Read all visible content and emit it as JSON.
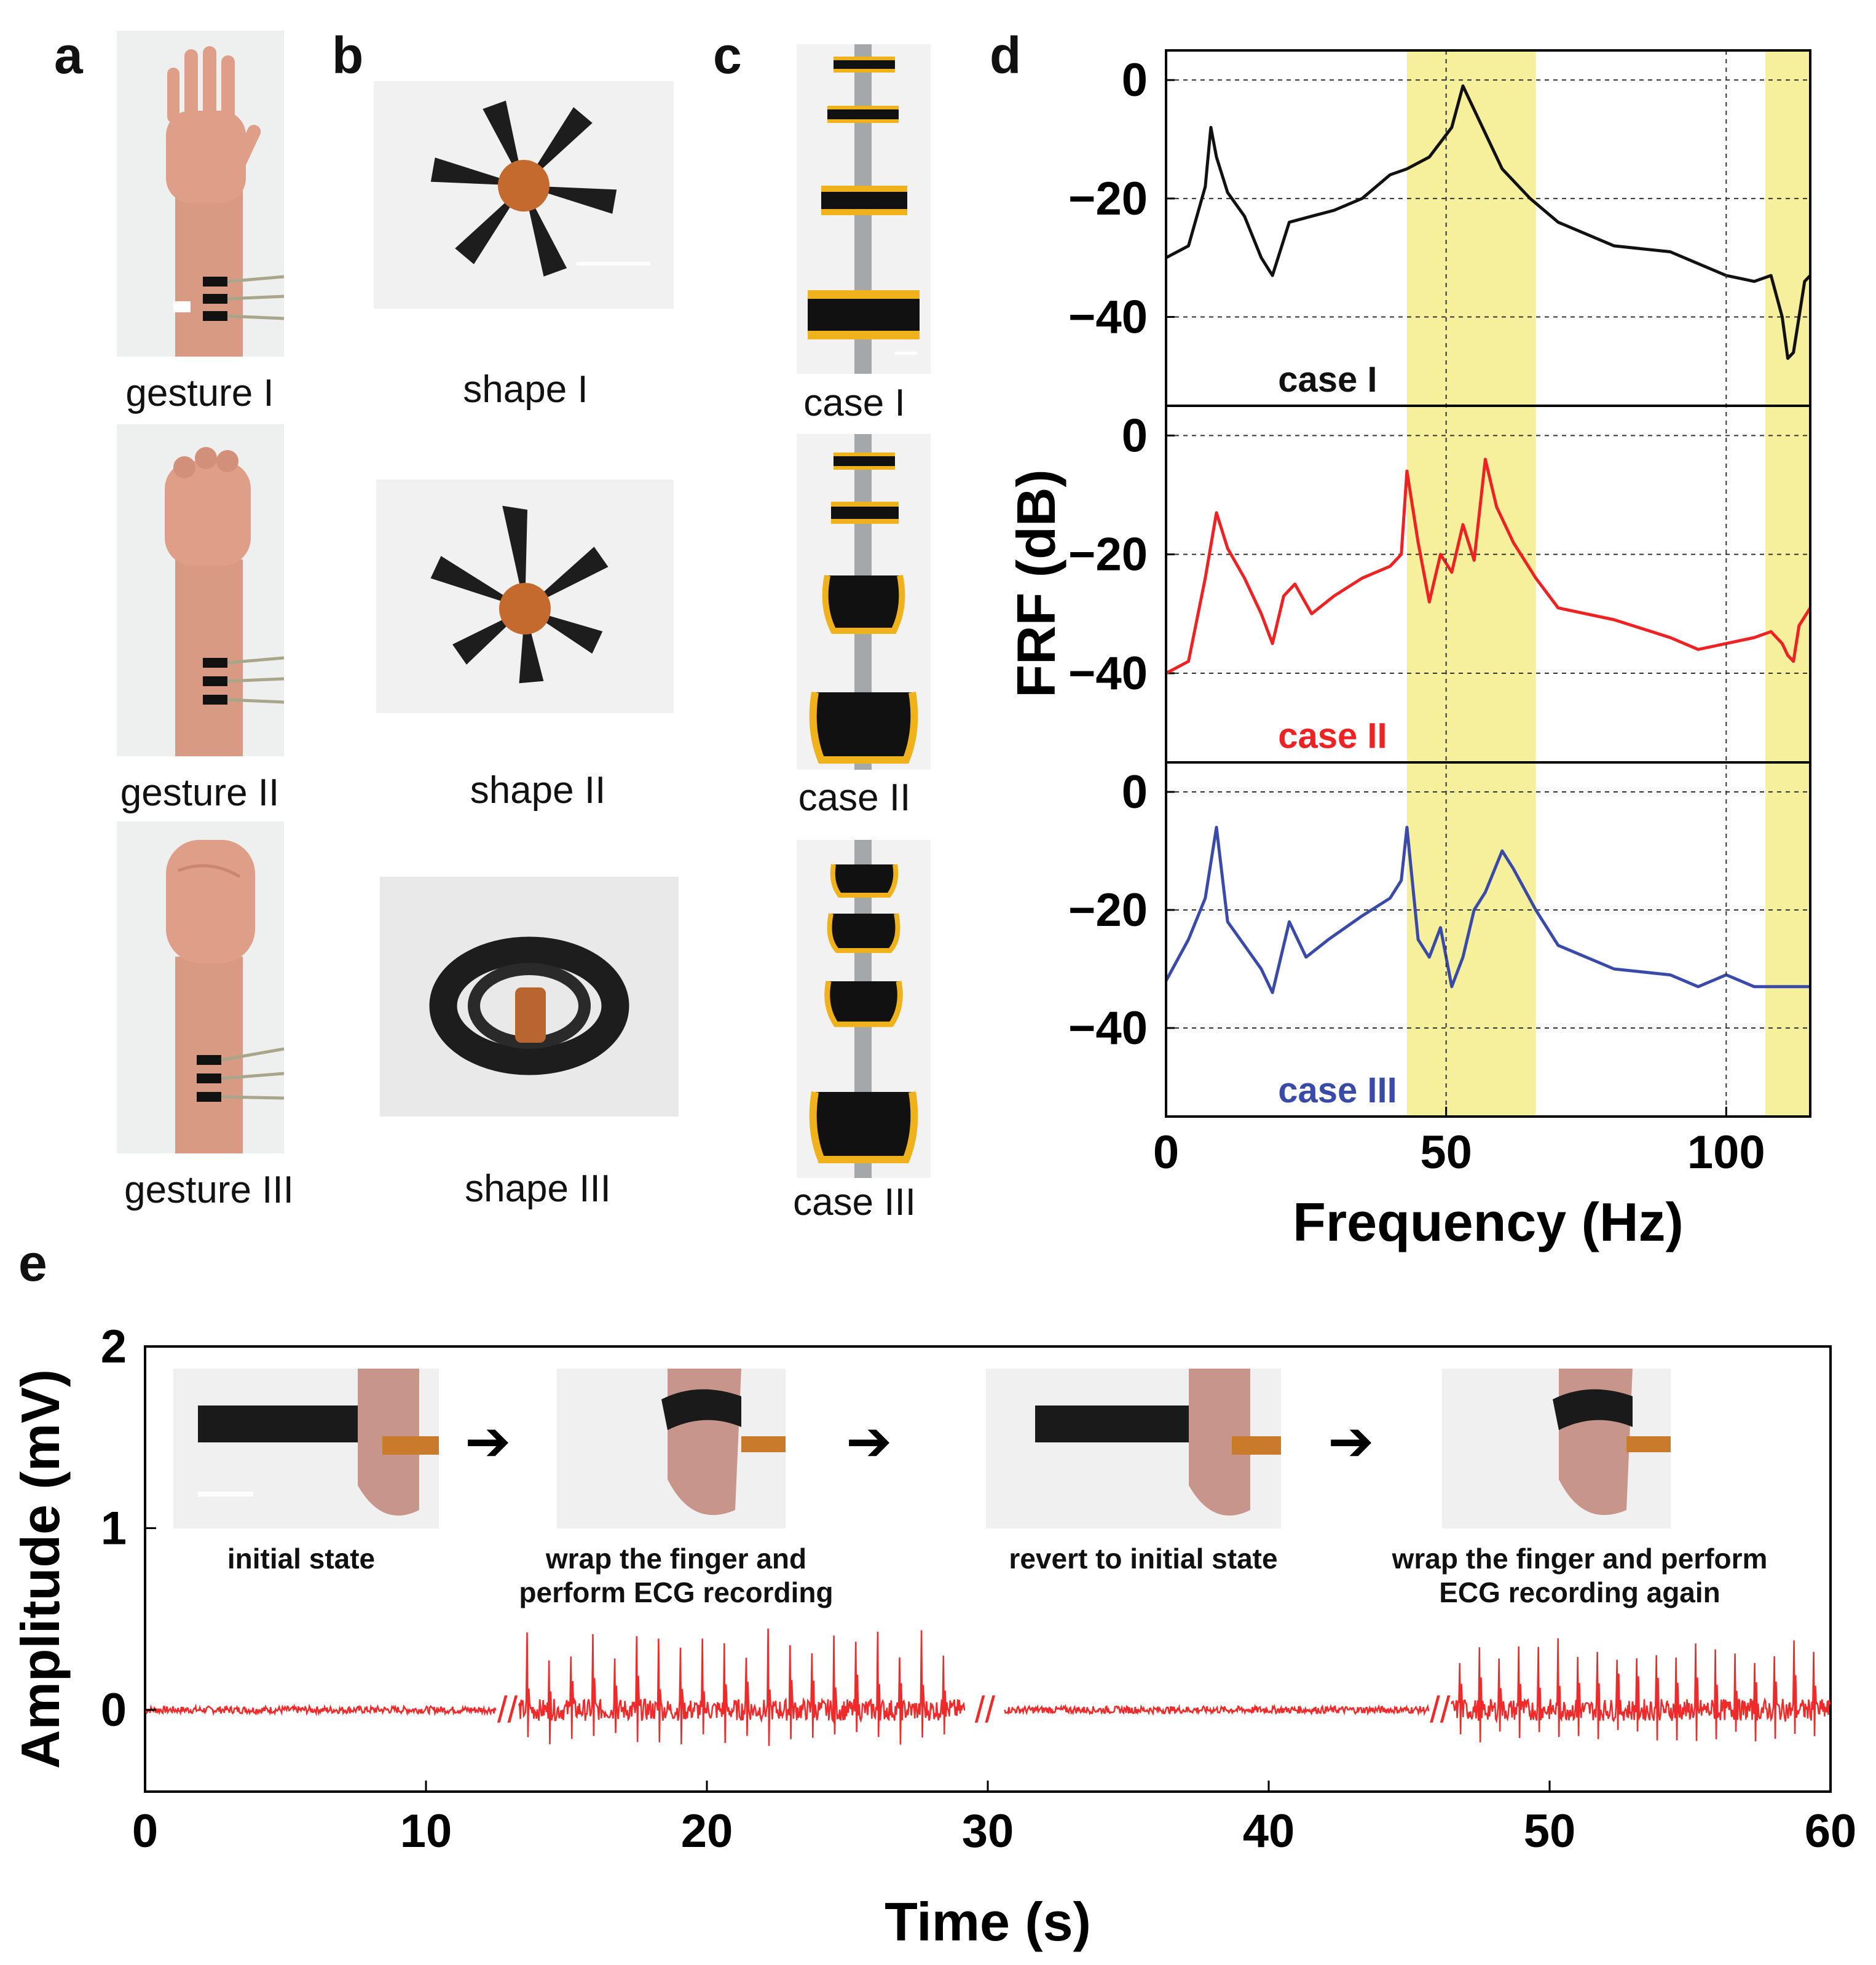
{
  "panels": {
    "a": {
      "letter": "a",
      "captions": [
        "gesture I",
        "gesture II",
        "gesture III"
      ]
    },
    "b": {
      "letter": "b",
      "captions": [
        "shape I",
        "shape II",
        "shape III"
      ]
    },
    "c": {
      "letter": "c",
      "captions": [
        "case I",
        "case II",
        "case III"
      ]
    },
    "d": {
      "letter": "d"
    },
    "e": {
      "letter": "e",
      "steps": [
        {
          "line1": "initial state",
          "line2": ""
        },
        {
          "line1": "wrap the finger and",
          "line2": "perform ECG recording"
        },
        {
          "line1": "revert to initial state",
          "line2": ""
        },
        {
          "line1": "wrap the finger and perform",
          "line2": "ECG recording again"
        }
      ]
    }
  },
  "colors": {
    "case1": "#111111",
    "case2": "#ee2222",
    "case3": "#3a4aa8",
    "highlight": "#f6ef9c",
    "ecg": "#ee2a2a"
  },
  "chart_data": [
    {
      "type": "line",
      "panel": "d",
      "title": "",
      "xlabel": "Frequency (Hz)",
      "ylabel": "FRF (dB)",
      "xlim": [
        0,
        115
      ],
      "ylim": [
        -55,
        5
      ],
      "x_ticks": [
        "0",
        "50",
        "100"
      ],
      "y_ticks": [
        "0",
        "−20",
        "−40"
      ],
      "highlight_bands": [
        [
          43,
          66
        ],
        [
          107,
          115
        ]
      ],
      "series": [
        {
          "name": "case I",
          "label": "case I",
          "x": [
            0,
            4,
            7,
            8,
            9,
            11,
            14,
            17,
            19,
            22,
            26,
            30,
            35,
            40,
            43,
            47,
            51,
            53,
            56,
            60,
            65,
            70,
            80,
            90,
            95,
            100,
            105,
            108,
            110,
            111,
            112,
            114,
            115
          ],
          "y": [
            -30,
            -28,
            -18,
            -8,
            -13,
            -19,
            -23,
            -30,
            -33,
            -24,
            -23,
            -22,
            -20,
            -16,
            -15,
            -13,
            -8,
            -1,
            -7,
            -15,
            -20,
            -24,
            -28,
            -29,
            -31,
            -33,
            -34,
            -33,
            -40,
            -47,
            -46,
            -34,
            -33
          ]
        },
        {
          "name": "case II",
          "label": "case II",
          "x": [
            0,
            4,
            7,
            9,
            11,
            14,
            17,
            19,
            21,
            23,
            26,
            30,
            35,
            40,
            42,
            43,
            45,
            47,
            49,
            51,
            53,
            55,
            57,
            59,
            62,
            66,
            70,
            80,
            90,
            95,
            100,
            105,
            108,
            110,
            111,
            112,
            113,
            115
          ],
          "y": [
            -40,
            -38,
            -24,
            -13,
            -19,
            -24,
            -30,
            -35,
            -27,
            -25,
            -30,
            -27,
            -24,
            -22,
            -20,
            -6,
            -18,
            -28,
            -20,
            -23,
            -15,
            -21,
            -4,
            -12,
            -18,
            -24,
            -29,
            -31,
            -34,
            -36,
            -35,
            -34,
            -33,
            -35,
            -37,
            -38,
            -32,
            -29
          ]
        },
        {
          "name": "case III",
          "label": "case III",
          "x": [
            0,
            4,
            7,
            9,
            11,
            14,
            17,
            19,
            22,
            25,
            29,
            35,
            40,
            42,
            43,
            45,
            47,
            49,
            51,
            53,
            55,
            57,
            60,
            62,
            66,
            70,
            80,
            90,
            95,
            100,
            105,
            110,
            115
          ],
          "y": [
            -32,
            -25,
            -18,
            -6,
            -22,
            -26,
            -30,
            -34,
            -22,
            -28,
            -25,
            -21,
            -18,
            -15,
            -6,
            -25,
            -28,
            -23,
            -33,
            -28,
            -20,
            -17,
            -10,
            -13,
            -20,
            -26,
            -30,
            -31,
            -33,
            -31,
            -33,
            -33,
            -33
          ]
        }
      ]
    },
    {
      "type": "line",
      "panel": "e",
      "title": "",
      "xlabel": "Time (s)",
      "ylabel": "Amplitude (mV)",
      "xlim": [
        0,
        60
      ],
      "ylim": [
        -0.45,
        2
      ],
      "x_ticks": [
        "0",
        "10",
        "20",
        "30",
        "40",
        "50",
        "60"
      ],
      "y_ticks": [
        "0",
        "1",
        "2"
      ],
      "baseline_mV": 0.0,
      "segments": [
        {
          "t_start": 0,
          "t_end": 12.5,
          "state": "initial",
          "noise_mV": 0.02
        },
        {
          "t_start": 13.3,
          "t_end": 29.2,
          "state": "ECG",
          "beat_interval_s": 0.78,
          "r_peak_mV": 0.45,
          "s_trough_mV": -0.2
        },
        {
          "t_start": 30.6,
          "t_end": 45.7,
          "state": "initial",
          "noise_mV": 0.02
        },
        {
          "t_start": 46.5,
          "t_end": 60,
          "state": "ECG",
          "beat_interval_s": 0.7,
          "r_peak_mV": 0.4,
          "s_trough_mV": -0.18
        }
      ],
      "break_marks_at": [
        12.9,
        29.9,
        46.1
      ],
      "break_mark_text": "//"
    }
  ]
}
